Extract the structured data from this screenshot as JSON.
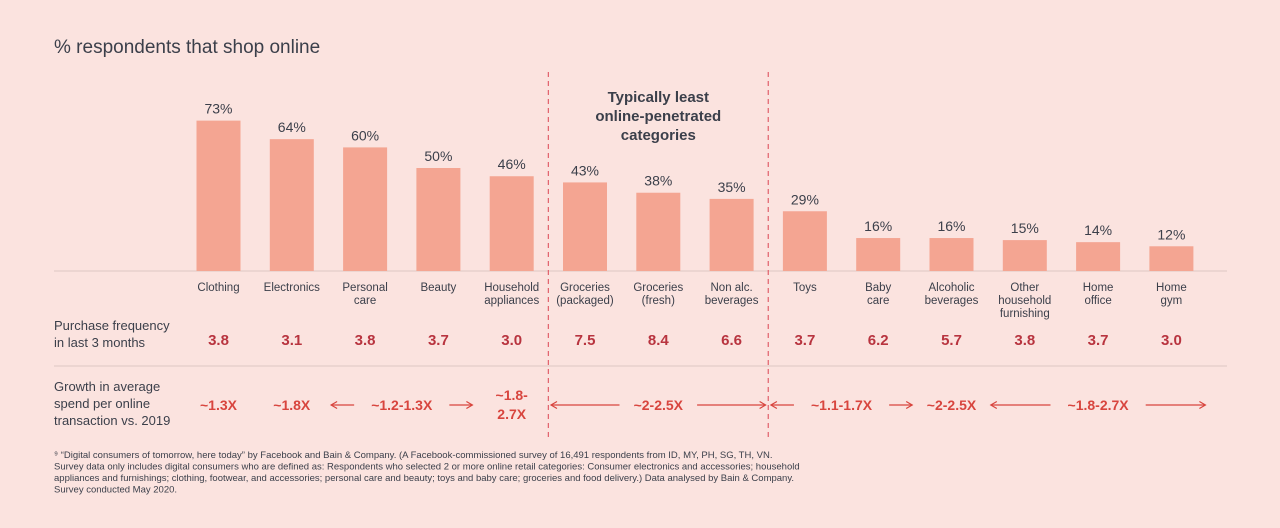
{
  "chart_data": {
    "type": "bar",
    "title": "% respondents that shop online",
    "unit": "%",
    "ylim": [
      0,
      100
    ],
    "categories": [
      [
        "Clothing"
      ],
      [
        "Electronics"
      ],
      [
        "Personal",
        "care"
      ],
      [
        "Beauty"
      ],
      [
        "Household",
        "appliances"
      ],
      [
        "Groceries",
        "(packaged)"
      ],
      [
        "Groceries",
        "(fresh)"
      ],
      [
        "Non alc.",
        "beverages"
      ],
      [
        "Toys"
      ],
      [
        "Baby",
        "care"
      ],
      [
        "Alcoholic",
        "beverages"
      ],
      [
        "Other",
        "household",
        "furnishing"
      ],
      [
        "Home",
        "office"
      ],
      [
        "Home",
        "gym"
      ]
    ],
    "values": [
      73,
      64,
      60,
      50,
      46,
      43,
      38,
      35,
      29,
      16,
      16,
      15,
      14,
      12
    ],
    "callout": [
      "Typically least",
      "online-penetrated",
      "categories"
    ],
    "highlight_range": [
      5,
      7
    ],
    "rows": {
      "frequency": {
        "label": [
          "Purchase frequency",
          "in last 3 months"
        ],
        "values": [
          "3.8",
          "3.1",
          "3.8",
          "3.7",
          "3.0",
          "7.5",
          "8.4",
          "6.6",
          "3.7",
          "6.2",
          "5.7",
          "3.8",
          "3.7",
          "3.0"
        ]
      },
      "growth": {
        "label": [
          "Growth in average",
          "spend per online",
          "transaction vs. 2019"
        ],
        "groups": [
          {
            "from": 0,
            "to": 0,
            "text": [
              "~1.3X"
            ],
            "arrows": false
          },
          {
            "from": 1,
            "to": 1,
            "text": [
              "~1.8X"
            ],
            "arrows": false
          },
          {
            "from": 2,
            "to": 3,
            "text": [
              "~1.2-1.3X"
            ],
            "arrows": true
          },
          {
            "from": 4,
            "to": 4,
            "text": [
              "~1.8-",
              "2.7X"
            ],
            "arrows": false
          },
          {
            "from": 5,
            "to": 7,
            "text": [
              "~2-2.5X"
            ],
            "arrows": true
          },
          {
            "from": 8,
            "to": 9,
            "text": [
              "~1.1-1.7X"
            ],
            "arrows": true
          },
          {
            "from": 10,
            "to": 10,
            "text": [
              "~2-2.5X"
            ],
            "arrows": false
          },
          {
            "from": 11,
            "to": 13,
            "text": [
              "~1.8-2.7X"
            ],
            "arrows": true
          }
        ]
      }
    }
  },
  "footnote": [
    "⁹ “Digital consumers of tomorrow, here today” by Facebook and Bain & Company. (A Facebook-commissioned survey of 16,491 respondents from ID, MY, PH, SG, TH, VN.",
    "Survey data only includes digital consumers who are defined as: Respondents who selected 2 or more online retail categories: Consumer electronics and accessories; household",
    "appliances and furnishings; clothing, footwear, and accessories; personal care and beauty; toys and baby care; groceries and food delivery.) Data analysed by Bain & Company.",
    "Survey conducted May 2020."
  ],
  "colors": {
    "bar": "#f4a592",
    "frequency": "#b8343f",
    "growth": "#d8453e",
    "divider": "#e0606a",
    "rule": "#dcc7c3"
  }
}
